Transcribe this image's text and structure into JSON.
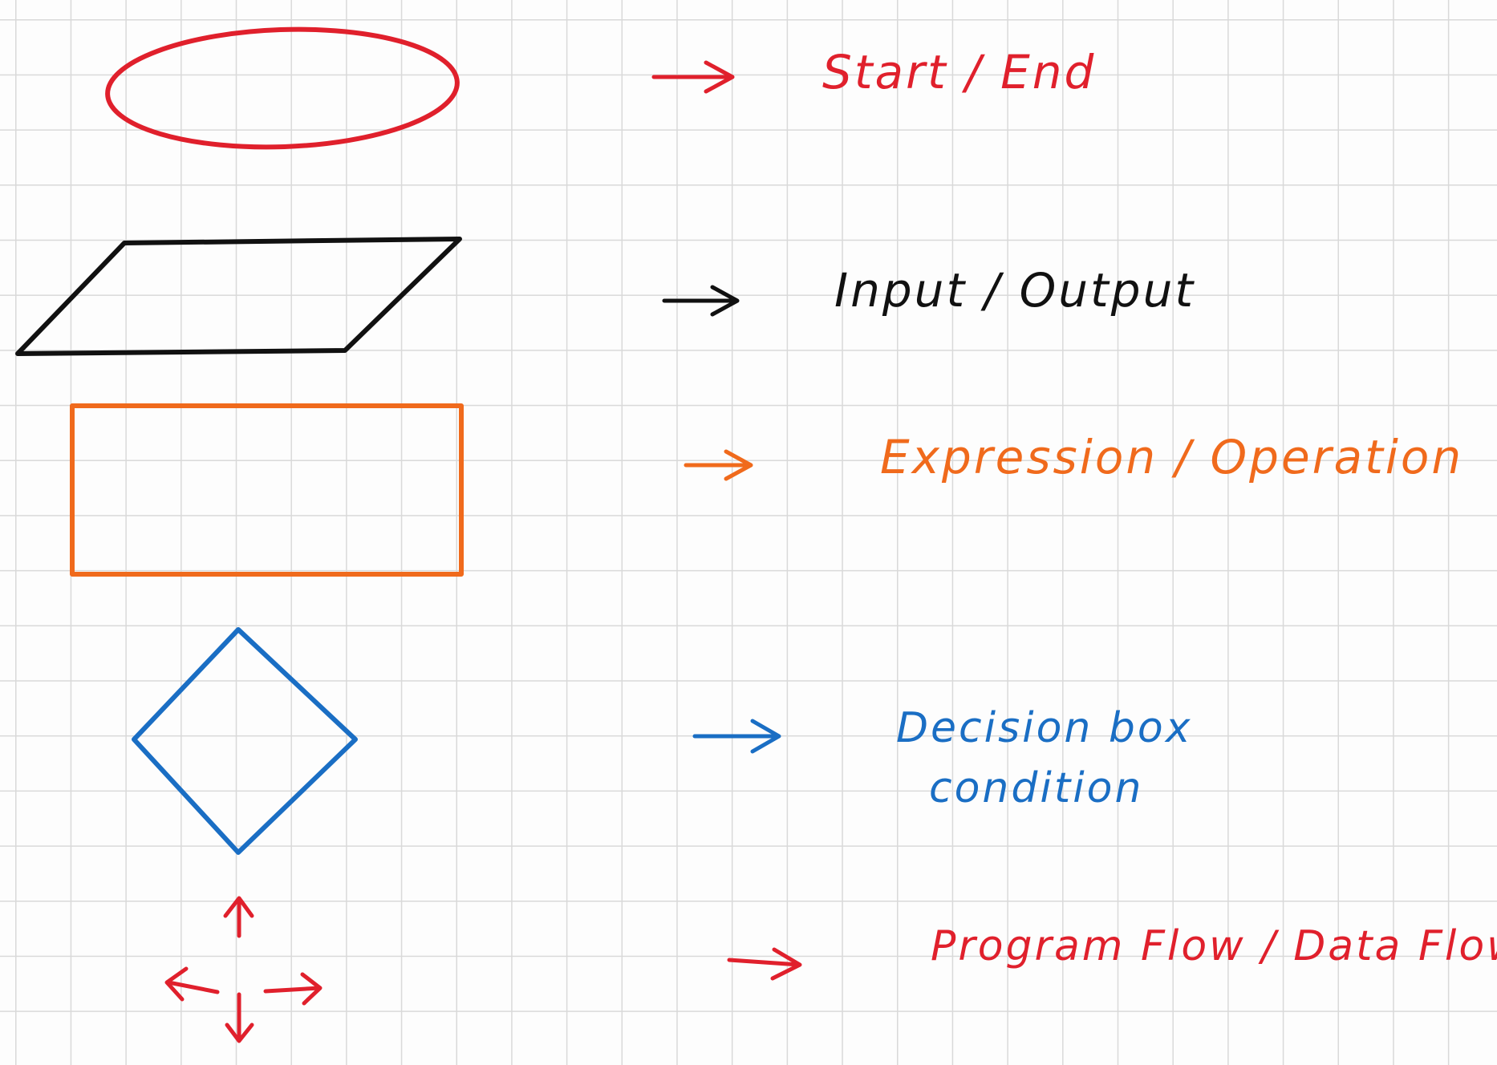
{
  "legend": [
    {
      "symbol": "ellipse",
      "label_lines": [
        "Start / End"
      ],
      "color": "#e0202c"
    },
    {
      "symbol": "parallelogram",
      "label_lines": [
        "Input / Output"
      ],
      "color": "#111111"
    },
    {
      "symbol": "rectangle",
      "label_lines": [
        "Expression / Operation"
      ],
      "color": "#f06a1c"
    },
    {
      "symbol": "diamond",
      "label_lines": [
        "Decision box",
        "condition"
      ],
      "color": "#1a6ec4"
    },
    {
      "symbol": "flow-arrows",
      "label_lines": [
        "Program Flow / Data Flow"
      ],
      "color": "#e0202c"
    }
  ]
}
